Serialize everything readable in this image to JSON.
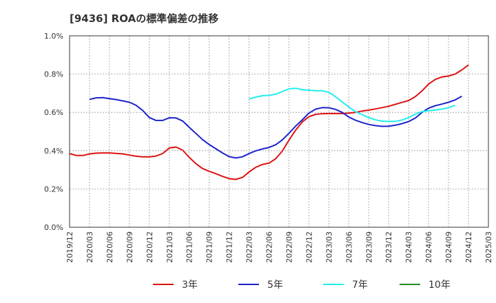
{
  "chart_data": {
    "type": "line",
    "title": "[9436]  ROAの標準偏差の推移",
    "xlabel": "",
    "ylabel": "",
    "ylim": [
      0,
      1.0
    ],
    "y_ticks": [
      "0.0%",
      "0.2%",
      "0.4%",
      "0.6%",
      "0.8%",
      "1.0%"
    ],
    "x_ticks": [
      "2019/12",
      "2020/03",
      "2020/06",
      "2020/09",
      "2020/12",
      "2021/03",
      "2021/06",
      "2021/09",
      "2021/12",
      "2022/03",
      "2022/06",
      "2022/09",
      "2022/12",
      "2023/03",
      "2023/06",
      "2023/09",
      "2023/12",
      "2024/03",
      "2024/06",
      "2024/09",
      "2024/12",
      "2025/03"
    ],
    "grid": true,
    "legend_position": "bottom",
    "series": [
      {
        "name": "3年",
        "color": "#dd1111",
        "start": "2019/12",
        "values": [
          0.385,
          0.375,
          0.375,
          0.383,
          0.387,
          0.388,
          0.388,
          0.386,
          0.383,
          0.377,
          0.371,
          0.368,
          0.368,
          0.372,
          0.385,
          0.414,
          0.419,
          0.403,
          0.365,
          0.332,
          0.307,
          0.292,
          0.28,
          0.266,
          0.254,
          0.25,
          0.26,
          0.289,
          0.313,
          0.328,
          0.335,
          0.358,
          0.398,
          0.455,
          0.507,
          0.55,
          0.577,
          0.59,
          0.593,
          0.594,
          0.594,
          0.594,
          0.596,
          0.6,
          0.607,
          0.612,
          0.618,
          0.625,
          0.632,
          0.642,
          0.652,
          0.662,
          0.682,
          0.712,
          0.748,
          0.772,
          0.785,
          0.79,
          0.8,
          0.822,
          0.848
        ]
      },
      {
        "name": "5年",
        "color": "#1a22cc",
        "start": "2020/03",
        "values": [
          0.668,
          0.676,
          0.677,
          0.672,
          0.667,
          0.66,
          0.653,
          0.637,
          0.61,
          0.573,
          0.558,
          0.558,
          0.572,
          0.571,
          0.555,
          0.522,
          0.49,
          0.458,
          0.432,
          0.41,
          0.388,
          0.369,
          0.362,
          0.368,
          0.385,
          0.399,
          0.409,
          0.417,
          0.431,
          0.456,
          0.491,
          0.528,
          0.561,
          0.596,
          0.617,
          0.625,
          0.624,
          0.616,
          0.6,
          0.576,
          0.559,
          0.547,
          0.537,
          0.531,
          0.527,
          0.528,
          0.533,
          0.541,
          0.552,
          0.57,
          0.6,
          0.622,
          0.635,
          0.643,
          0.653,
          0.665,
          0.684
        ]
      },
      {
        "name": "7年",
        "color": "#22eeee",
        "start": "2022/03",
        "values": [
          0.67,
          0.68,
          0.687,
          0.689,
          0.695,
          0.709,
          0.723,
          0.726,
          0.719,
          0.716,
          0.713,
          0.713,
          0.705,
          0.682,
          0.655,
          0.628,
          0.604,
          0.588,
          0.573,
          0.561,
          0.554,
          0.553,
          0.553,
          0.56,
          0.573,
          0.591,
          0.604,
          0.609,
          0.612,
          0.617,
          0.625,
          0.637
        ]
      },
      {
        "name": "10年",
        "color": "#228b22",
        "start": "2019/12",
        "values": []
      }
    ]
  }
}
